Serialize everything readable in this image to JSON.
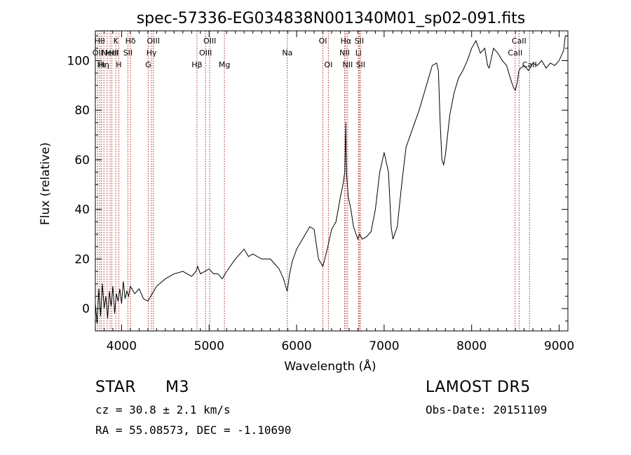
{
  "title": "spec-57336-EG034838N001340M01_sp02-091.fits",
  "chart_data": {
    "type": "line",
    "title": "spec-57336-EG034838N001340M01_sp02-091.fits",
    "xlabel": "Wavelength (Å)",
    "ylabel": "Flux (relative)",
    "xlim": [
      3700,
      9100
    ],
    "ylim": [
      -9,
      112
    ],
    "xticks": [
      4000,
      5000,
      6000,
      7000,
      8000,
      9000
    ],
    "yticks": [
      0,
      20,
      40,
      60,
      80,
      100
    ],
    "series": [
      {
        "x": [
          3700,
          3720,
          3740,
          3760,
          3780,
          3800,
          3820,
          3840,
          3860,
          3880,
          3900,
          3920,
          3940,
          3960,
          3980,
          4000,
          4020,
          4040,
          4060,
          4080,
          4100,
          4150,
          4200,
          4250,
          4300,
          4350,
          4400,
          4500,
          4600,
          4700,
          4800,
          4850,
          4870,
          4900,
          5000,
          5050,
          5100,
          5150,
          5200,
          5300,
          5400,
          5450,
          5500,
          5600,
          5700,
          5750,
          5800,
          5850,
          5892,
          5920,
          5950,
          6000,
          6100,
          6150,
          6200,
          6250,
          6300,
          6350,
          6400,
          6450,
          6500,
          6530,
          6550,
          6563,
          6570,
          6590,
          6620,
          6650,
          6680,
          6700,
          6720,
          6750,
          6800,
          6850,
          6900,
          6950,
          7000,
          7050,
          7080,
          7100,
          7150,
          7200,
          7250,
          7300,
          7400,
          7500,
          7550,
          7600,
          7620,
          7640,
          7660,
          7680,
          7700,
          7750,
          7800,
          7850,
          7900,
          7950,
          8000,
          8050,
          8100,
          8150,
          8183,
          8200,
          8250,
          8300,
          8350,
          8400,
          8450,
          8480,
          8500,
          8520,
          8540,
          8560,
          8600,
          8650,
          8700,
          8750,
          8800,
          8850,
          8900,
          8950,
          9000,
          9050,
          9070,
          9100
        ],
        "values": [
          2,
          -6,
          8,
          -3,
          10,
          0,
          5,
          -4,
          7,
          1,
          9,
          -2,
          6,
          3,
          8,
          2,
          11,
          4,
          7,
          5,
          9,
          6,
          8,
          4,
          3,
          6,
          9,
          12,
          14,
          15,
          13,
          15,
          17,
          14,
          16,
          14,
          14,
          12,
          15,
          20,
          24,
          21,
          22,
          20,
          20,
          18,
          16,
          12,
          7,
          14,
          19,
          24,
          30,
          33,
          32,
          20,
          17,
          24,
          32,
          35,
          45,
          50,
          55,
          75,
          55,
          45,
          40,
          33,
          30,
          28,
          30,
          28,
          29,
          31,
          40,
          55,
          63,
          55,
          33,
          28,
          33,
          50,
          65,
          70,
          80,
          92,
          98,
          99,
          96,
          75,
          60,
          58,
          62,
          78,
          87,
          93,
          96,
          100,
          105,
          108,
          103,
          105,
          98,
          97,
          105,
          103,
          100,
          98,
          92,
          89,
          88,
          91,
          96,
          97,
          98,
          96,
          99,
          98,
          100,
          97,
          99,
          98,
          100,
          104,
          110,
          110
        ]
      }
    ],
    "lines": [
      {
        "wl": 3727,
        "label": "OII",
        "row": 1
      },
      {
        "wl": 3750,
        "label": "Hθ",
        "row": 0
      },
      {
        "wl": 3770,
        "label": "Hι",
        "row": 2
      },
      {
        "wl": 3798,
        "label": "Hη",
        "row": 2
      },
      {
        "wl": 3835,
        "label": "",
        "row": 2
      },
      {
        "wl": 3869,
        "label": "NeIII",
        "row": 1
      },
      {
        "wl": 3889,
        "label": "HeI",
        "row": 1
      },
      {
        "wl": 3934,
        "label": "K",
        "row": 0
      },
      {
        "wl": 3968,
        "label": "H",
        "row": 2
      },
      {
        "wl": 4072,
        "label": "SII",
        "row": 1
      },
      {
        "wl": 4102,
        "label": "Hδ",
        "row": 0
      },
      {
        "wl": 4304,
        "label": "G",
        "row": 2
      },
      {
        "wl": 4341,
        "label": "Hγ",
        "row": 1
      },
      {
        "wl": 4363,
        "label": "OIII",
        "row": 0
      },
      {
        "wl": 4861,
        "label": "Hβ",
        "row": 2
      },
      {
        "wl": 4959,
        "label": "OIII",
        "row": 1
      },
      {
        "wl": 5007,
        "label": "OIII",
        "row": 0
      },
      {
        "wl": 5175,
        "label": "Mg",
        "row": 2
      },
      {
        "wl": 5894,
        "label": "Na",
        "row": 1
      },
      {
        "wl": 6300,
        "label": "OI",
        "row": 0
      },
      {
        "wl": 6363,
        "label": "OI",
        "row": 2
      },
      {
        "wl": 6548,
        "label": "NII",
        "row": 1
      },
      {
        "wl": 6563,
        "label": "Hα",
        "row": 0
      },
      {
        "wl": 6583,
        "label": "NII",
        "row": 2
      },
      {
        "wl": 6707,
        "label": "Li",
        "row": 1
      },
      {
        "wl": 6716,
        "label": "SII",
        "row": 0
      },
      {
        "wl": 6731,
        "label": "SII",
        "row": 2
      },
      {
        "wl": 8498,
        "label": "CaII",
        "row": 1
      },
      {
        "wl": 8542,
        "label": "CaII",
        "row": 0
      },
      {
        "wl": 8662,
        "label": "CaII",
        "row": 2
      }
    ],
    "line_color": "#b22222"
  },
  "info": {
    "object_class": "STAR",
    "subclass": "M3",
    "survey": "LAMOST  DR5",
    "cz": "cz = 30.8 ± 2.1 km/s",
    "obs_date": "Obs-Date: 20151109",
    "coords": "RA =  55.08573, DEC =  -1.10690"
  }
}
